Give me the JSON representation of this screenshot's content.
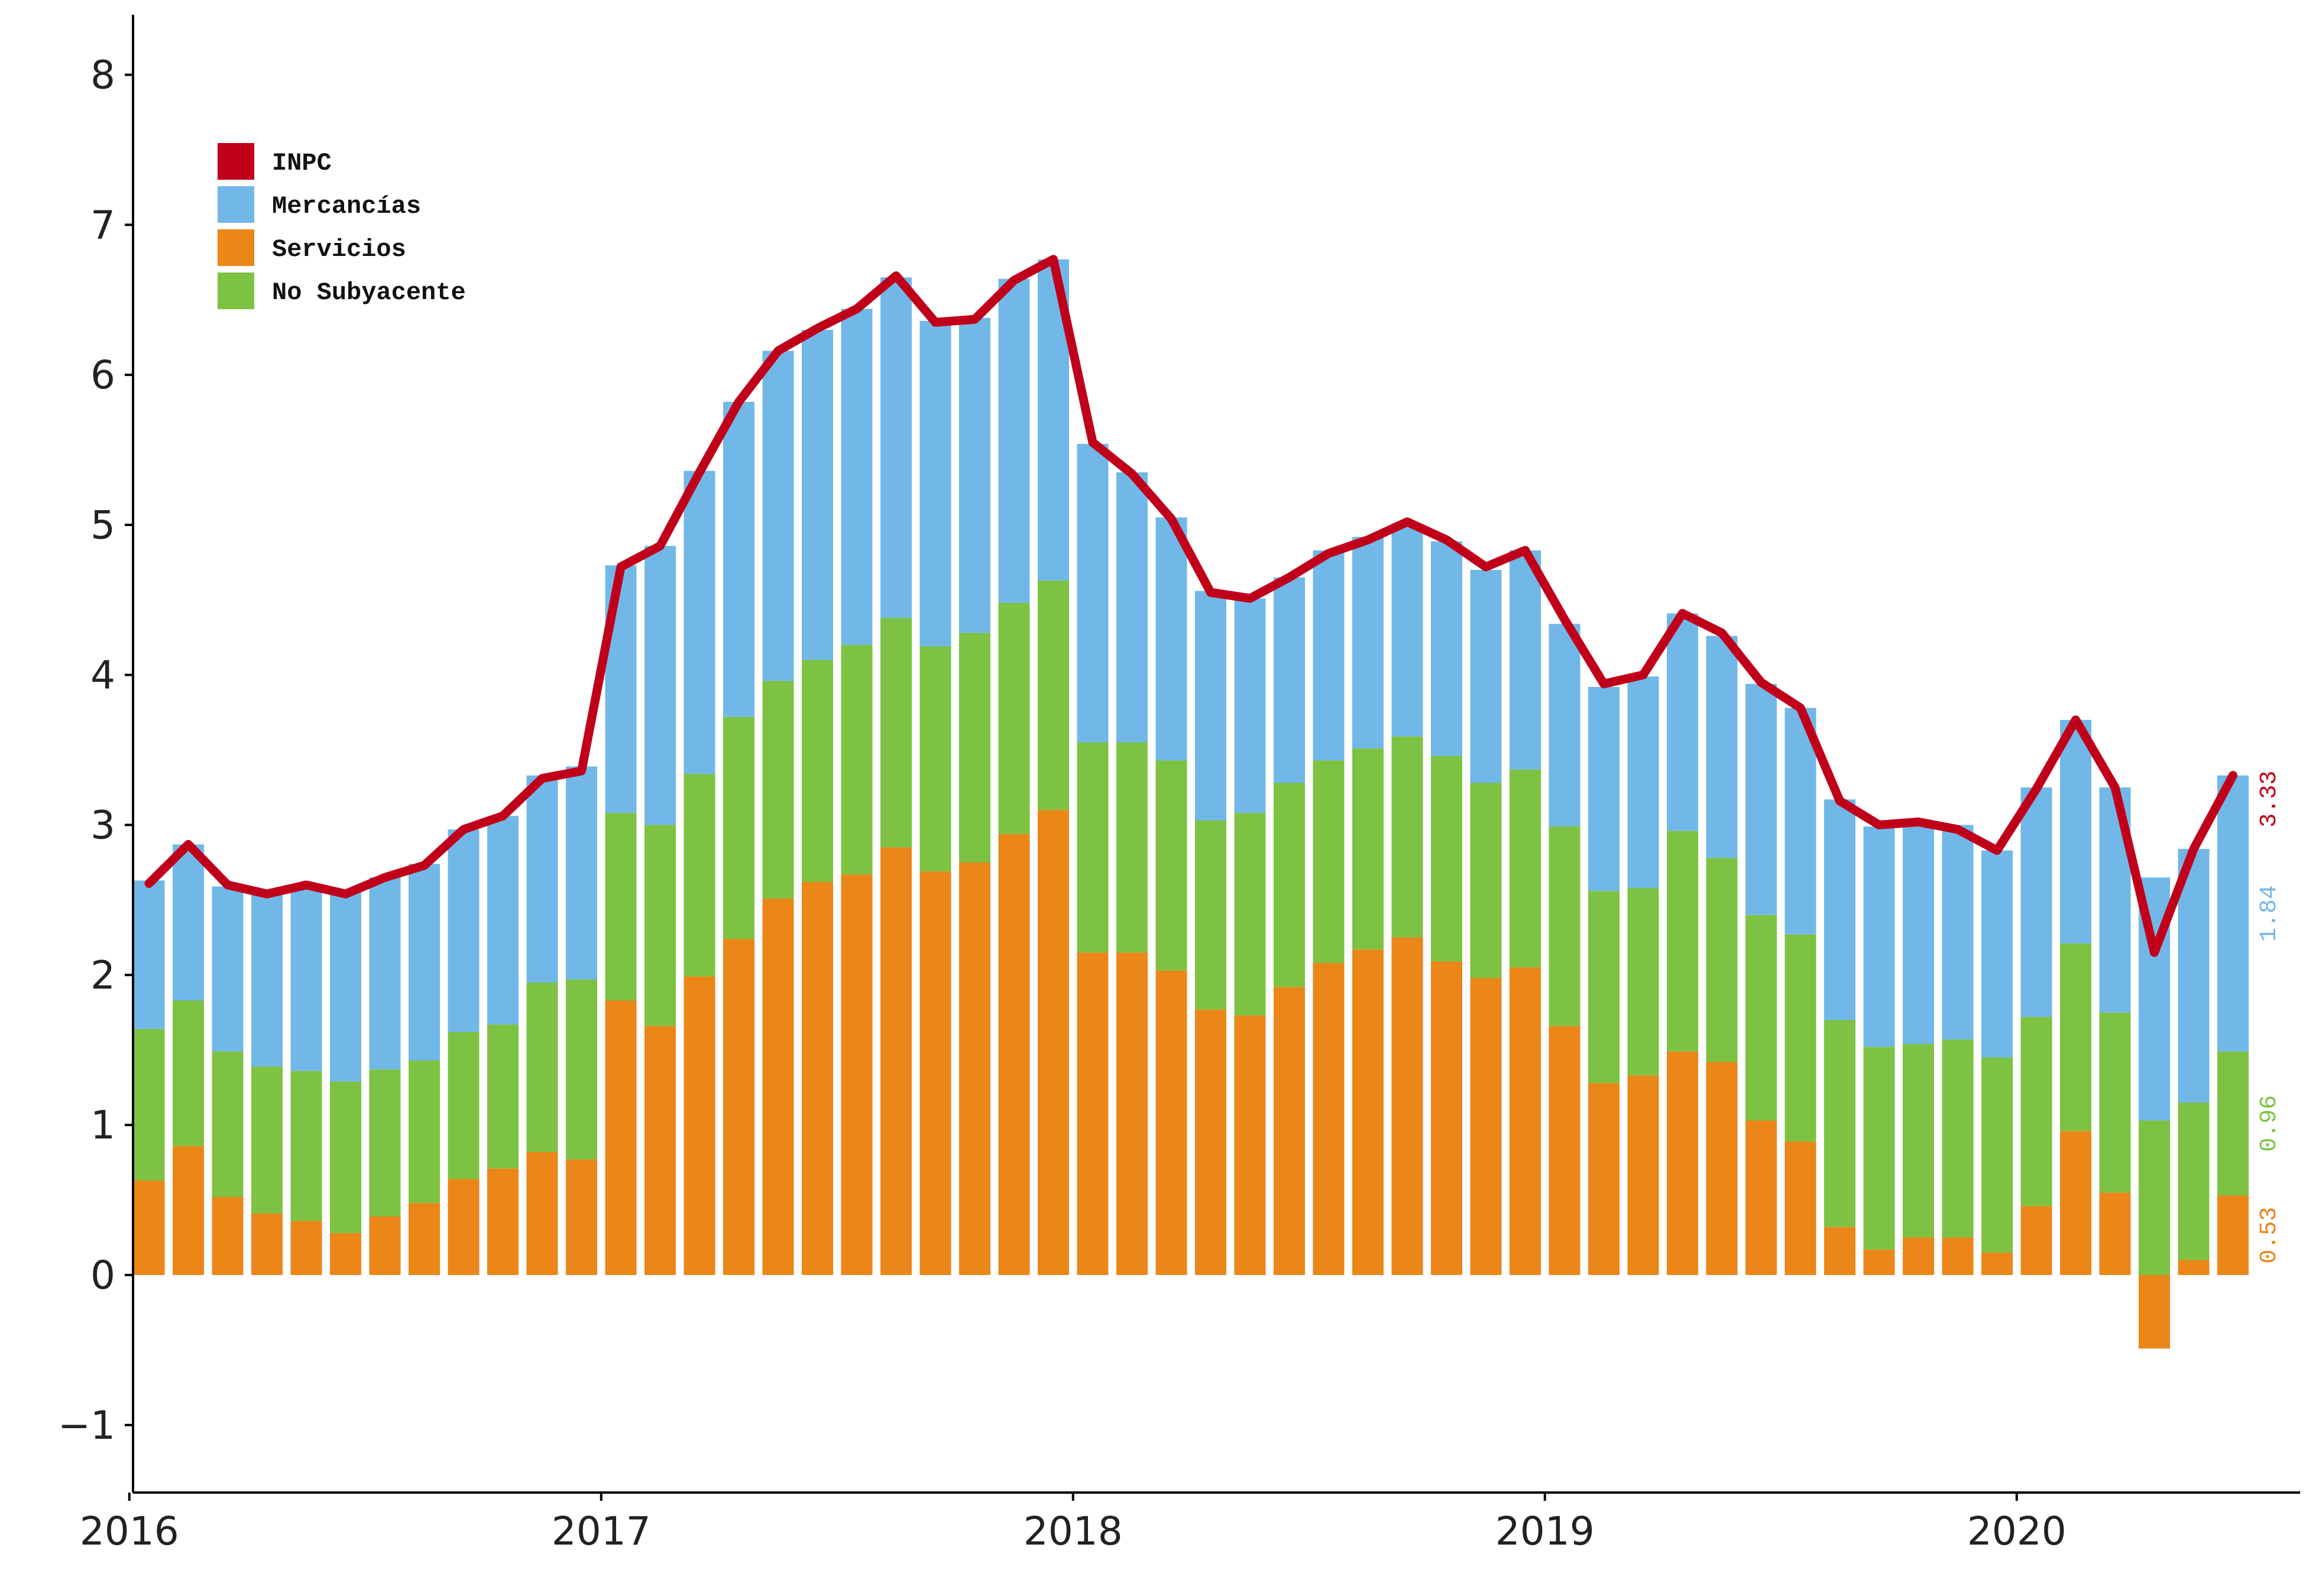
{
  "chart_data": {
    "type": "bar",
    "stacked": true,
    "title": "",
    "xlabel": "",
    "ylabel": "",
    "ylim": [
      -1.45,
      8.4
    ],
    "y_ticks": [
      -1,
      0,
      1,
      2,
      3,
      4,
      5,
      6,
      7,
      8
    ],
    "x_ticks": [
      {
        "label": "2016",
        "index": 0
      },
      {
        "label": "2017",
        "index": 12
      },
      {
        "label": "2018",
        "index": 24
      },
      {
        "label": "2019",
        "index": 36
      },
      {
        "label": "2020",
        "index": 48
      }
    ],
    "grid": false,
    "legend_position": "top-left",
    "legend": [
      {
        "label": "INPC",
        "color": "#C0001A"
      },
      {
        "label": "Mercancías",
        "color": "#71B8E8"
      },
      {
        "label": "Servicios",
        "color": "#EB8619"
      },
      {
        "label": "No Subyacente",
        "color": "#7DC242"
      }
    ],
    "categories": [
      "2016-01",
      "2016-02",
      "2016-03",
      "2016-04",
      "2016-05",
      "2016-06",
      "2016-07",
      "2016-08",
      "2016-09",
      "2016-10",
      "2016-11",
      "2016-12",
      "2017-01",
      "2017-02",
      "2017-03",
      "2017-04",
      "2017-05",
      "2017-06",
      "2017-07",
      "2017-08",
      "2017-09",
      "2017-10",
      "2017-11",
      "2017-12",
      "2018-01",
      "2018-02",
      "2018-03",
      "2018-04",
      "2018-05",
      "2018-06",
      "2018-07",
      "2018-08",
      "2018-09",
      "2018-10",
      "2018-11",
      "2018-12",
      "2019-01",
      "2019-02",
      "2019-03",
      "2019-04",
      "2019-05",
      "2019-06",
      "2019-07",
      "2019-08",
      "2019-09",
      "2019-10",
      "2019-11",
      "2019-12",
      "2020-01",
      "2020-02",
      "2020-03",
      "2020-04",
      "2020-05",
      "2020-06"
    ],
    "series": [
      {
        "name": "Servicios",
        "color": "#EB8619",
        "values": [
          0.63,
          0.86,
          0.52,
          0.41,
          0.36,
          0.28,
          0.39,
          0.48,
          0.64,
          0.71,
          0.82,
          0.77,
          1.83,
          1.66,
          1.99,
          2.24,
          2.51,
          2.62,
          2.67,
          2.85,
          2.69,
          2.75,
          2.94,
          3.1,
          2.15,
          2.15,
          2.03,
          1.77,
          1.73,
          1.92,
          2.08,
          2.17,
          2.25,
          2.09,
          1.98,
          2.05,
          1.66,
          1.28,
          1.33,
          1.49,
          1.42,
          1.03,
          0.89,
          0.32,
          0.17,
          0.25,
          0.25,
          0.15,
          0.46,
          0.96,
          0.55,
          -0.49,
          0.1,
          0.53
        ]
      },
      {
        "name": "No Subyacente",
        "color": "#7DC242",
        "values": [
          1.01,
          0.97,
          0.97,
          0.98,
          1.0,
          1.01,
          0.98,
          0.95,
          0.98,
          0.96,
          1.13,
          1.2,
          1.25,
          1.34,
          1.35,
          1.48,
          1.45,
          1.48,
          1.53,
          1.53,
          1.5,
          1.53,
          1.54,
          1.53,
          1.4,
          1.4,
          1.4,
          1.26,
          1.35,
          1.36,
          1.35,
          1.34,
          1.34,
          1.37,
          1.3,
          1.32,
          1.33,
          1.28,
          1.25,
          1.47,
          1.36,
          1.37,
          1.38,
          1.38,
          1.35,
          1.29,
          1.32,
          1.3,
          1.26,
          1.25,
          1.2,
          1.03,
          1.05,
          0.96
        ]
      },
      {
        "name": "Mercancías",
        "color": "#71B8E8",
        "values": [
          0.99,
          1.04,
          1.1,
          1.16,
          1.23,
          1.27,
          1.28,
          1.31,
          1.35,
          1.39,
          1.38,
          1.42,
          1.65,
          1.86,
          2.02,
          2.1,
          2.2,
          2.2,
          2.24,
          2.27,
          2.17,
          2.1,
          2.16,
          2.14,
          1.99,
          1.8,
          1.62,
          1.53,
          1.43,
          1.37,
          1.4,
          1.41,
          1.42,
          1.43,
          1.42,
          1.46,
          1.35,
          1.36,
          1.41,
          1.45,
          1.48,
          1.54,
          1.51,
          1.47,
          1.47,
          1.47,
          1.43,
          1.38,
          1.53,
          1.49,
          1.5,
          1.62,
          1.69,
          1.84
        ]
      }
    ],
    "line_series": {
      "name": "INPC",
      "color": "#C0001A",
      "values": [
        2.61,
        2.87,
        2.6,
        2.54,
        2.6,
        2.54,
        2.65,
        2.73,
        2.97,
        3.06,
        3.31,
        3.36,
        4.72,
        4.86,
        5.35,
        5.82,
        6.16,
        6.31,
        6.44,
        6.66,
        6.35,
        6.37,
        6.63,
        6.77,
        5.55,
        5.34,
        5.04,
        4.55,
        4.51,
        4.65,
        4.81,
        4.9,
        5.02,
        4.9,
        4.72,
        4.83,
        4.37,
        3.94,
        4.0,
        4.41,
        4.28,
        3.95,
        3.78,
        3.16,
        3.0,
        3.02,
        2.97,
        2.83,
        3.24,
        3.7,
        3.25,
        2.15,
        2.84,
        3.33
      ]
    },
    "end_labels": [
      {
        "text": "0.53",
        "color": "#EB8619",
        "value": 0.53
      },
      {
        "text": "0.96",
        "color": "#7DC242",
        "value": 0.96
      },
      {
        "text": "1.84",
        "color": "#71B8E8",
        "value": 1.84
      },
      {
        "text": "3.33",
        "color": "#C0001A",
        "value": 3.33
      }
    ]
  }
}
